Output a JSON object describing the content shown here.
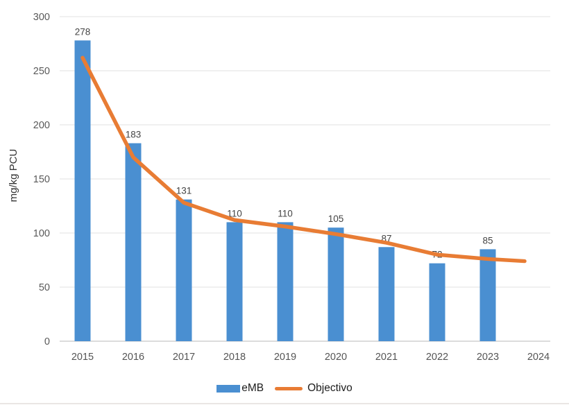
{
  "chart_data": {
    "type": "bar",
    "categories": [
      "2015",
      "2016",
      "2017",
      "2018",
      "2019",
      "2020",
      "2021",
      "2022",
      "2023",
      "2024"
    ],
    "series": [
      {
        "name": "eMB",
        "type": "bar",
        "values": [
          278,
          183,
          131,
          110,
          110,
          105,
          87,
          72,
          85,
          null
        ]
      },
      {
        "name": "Objectivo",
        "type": "line",
        "values": [
          262,
          170,
          128,
          112,
          106,
          99,
          91,
          80,
          76,
          74
        ]
      }
    ],
    "title": "",
    "xlabel": "",
    "ylabel": "mg/kg PCU",
    "ylim": [
      0,
      300
    ],
    "ytick_step": 50,
    "yticks": [
      0,
      50,
      100,
      150,
      200,
      250,
      300
    ],
    "grid": true,
    "data_labels_series": "eMB",
    "legend_position": "bottom"
  },
  "colors": {
    "bar": "#4a8fd1",
    "line": "#e87c34",
    "grid": "#e2e2e2",
    "axis": "#c8c8c8",
    "tick_text": "#595959",
    "bar_label_text": "#444444",
    "y_title_text": "#333333",
    "legend_text": "#1c1c1c"
  }
}
